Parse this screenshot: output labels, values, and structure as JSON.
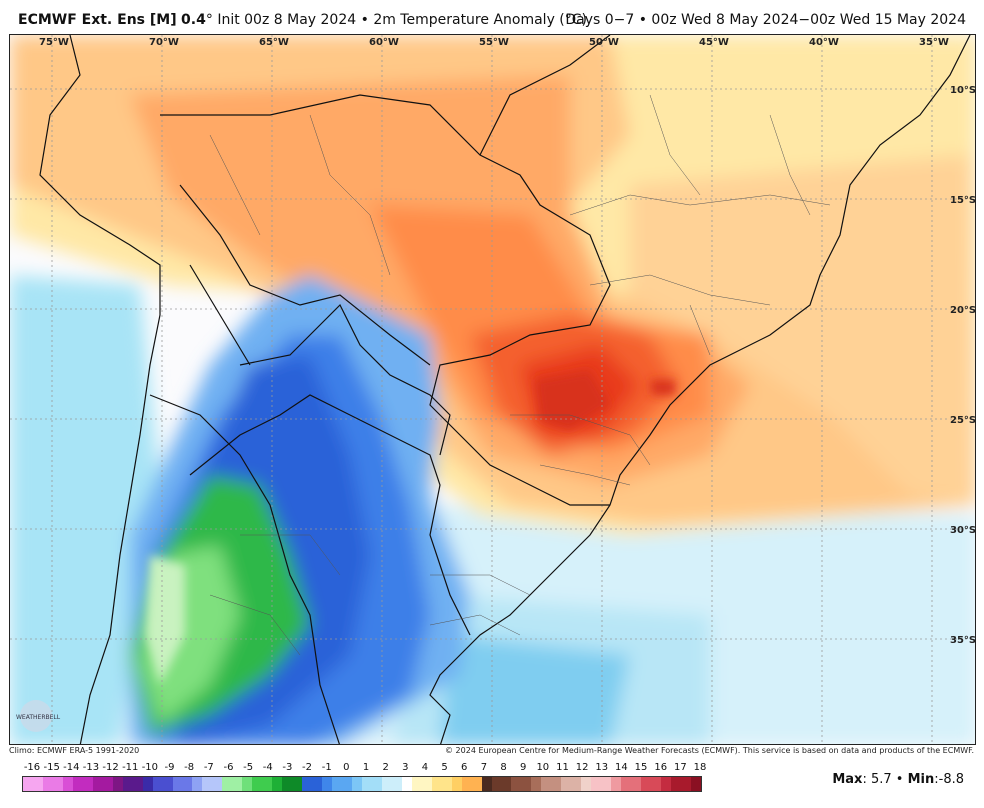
{
  "header": {
    "model": "ECMWF Ext. Ens [M]",
    "resolution": "0.4",
    "deg": "°",
    "init": "Init 00z 8 May 2024",
    "bullet": "•",
    "variable": "2m Temperature Anomaly (°C)",
    "valid": "Days 0−7 • 00z Wed 8 May 2024−00z Wed 15 May 2024"
  },
  "map": {
    "lon_labels": [
      "75°W",
      "70°W",
      "65°W",
      "60°W",
      "55°W",
      "50°W",
      "45°W",
      "40°W",
      "35°W"
    ],
    "lat_labels": [
      "10°S",
      "15°S",
      "20°S",
      "25°S",
      "30°S",
      "35°S"
    ],
    "logo_text": "WEATHERBELL"
  },
  "footer": {
    "climo": "Climo: ECMWF ERA-5 1991-2020",
    "copyright": "© 2024 European Centre for Medium-Range Weather Forecasts (ECMWF). This service is based on data and products of the ECMWF.",
    "max_label": "Max",
    "max_value": ": 5.7",
    "sep": "•",
    "min_label": "Min",
    "min_value": ":-8.8"
  },
  "colorbar": {
    "labels": [
      "-16",
      "-15",
      "-14",
      "-13",
      "-12",
      "-11",
      "-10",
      "-9",
      "-8",
      "-7",
      "-6",
      "-5",
      "-4",
      "-3",
      "-2",
      "-1",
      "0",
      "1",
      "2",
      "3",
      "4",
      "5",
      "6",
      "7",
      "8",
      "9",
      "10",
      "11",
      "12",
      "13",
      "14",
      "15",
      "16",
      "17",
      "18"
    ],
    "colors": [
      "#f6a6f0",
      "#ea7be6",
      "#d94fd6",
      "#c22cbf",
      "#a41aa0",
      "#7e1684",
      "#5a1a8c",
      "#3a2ba8",
      "#4a4fd0",
      "#6a78e8",
      "#8ea2f4",
      "#b5c6fa",
      "#9ff0a4",
      "#6fe07a",
      "#3fcc4e",
      "#1eb036",
      "#0e8a28",
      "#2a62d8",
      "#3f86ea",
      "#5aa7f2",
      "#7cc6f6",
      "#a3def8",
      "#cdeefa",
      "#ffffff",
      "#fff6c2",
      "#ffe48a",
      "#ffcf63",
      "#ffb251",
      "#ff9146",
      "#ff6b33",
      "#f2432a",
      "#d82a1e",
      "#b41c16",
      "#8a120e",
      "#5f0c09"
    ],
    "colors_warm_tail": [
      "#4a2a20",
      "#6b3a2a",
      "#8c5240",
      "#a86e5a",
      "#c49080",
      "#dcb2a6",
      "#f0d2ca",
      "#f7c2c6",
      "#ef9aa0",
      "#e4707a",
      "#d84a58",
      "#c42c40",
      "#a81a2c",
      "#8a1022"
    ]
  },
  "chart_data": {
    "type": "heatmap",
    "variable": "2m Temperature Anomaly (°C)",
    "max": 5.7,
    "min": -8.8,
    "scale_range": [
      -16,
      18
    ]
  }
}
